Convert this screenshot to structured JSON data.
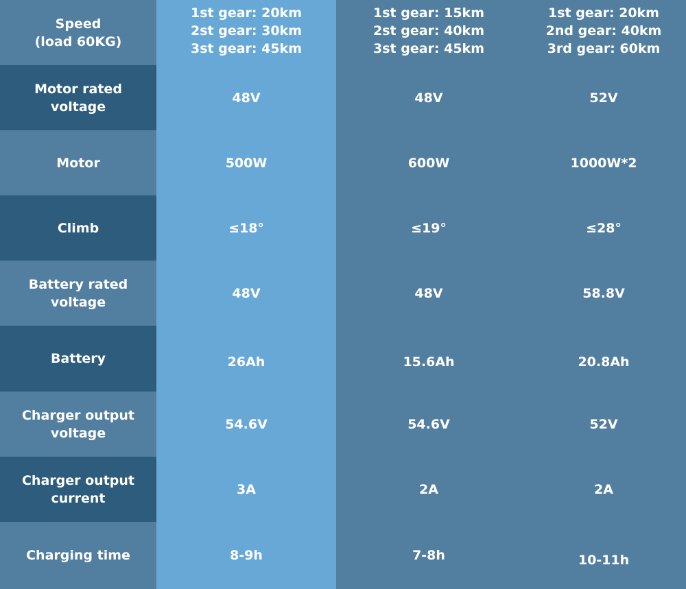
{
  "rows": [
    {
      "label": "Speed\n(load 60KG)",
      "values": [
        "1st gear: 20km\n2st gear: 30km\n3st gear: 45km",
        "1st gear: 15km\n2st gear: 40km\n3st gear: 45km",
        "1st gear: 20km\n2nd gear: 40km\n3rd gear: 60km"
      ]
    },
    {
      "label": "Motor rated\nvoltage",
      "values": [
        "48V",
        "48V",
        "52V"
      ]
    },
    {
      "label": "Motor",
      "values": [
        "500W",
        "600W",
        "1000W*2"
      ]
    },
    {
      "label": "Climb",
      "values": [
        "≤18°",
        "≤19°",
        "≤28°"
      ]
    },
    {
      "label": "Battery rated\nvoltage",
      "values": [
        "48V",
        "48V",
        "58.8V"
      ]
    },
    {
      "label": "Battery",
      "values": [
        "26Ah",
        "15.6Ah",
        "20.8Ah"
      ]
    },
    {
      "label": "Charger output\nvoltage",
      "values": [
        "54.6V",
        "54.6V",
        "52V"
      ]
    },
    {
      "label": "Charger output\ncurrent",
      "values": [
        "3A",
        "2A",
        "2A"
      ]
    },
    {
      "label": "Charging time",
      "values": [
        "8-9h",
        "7-8h",
        "10-11h"
      ]
    }
  ],
  "colors": {
    "label_light": "#527ea0",
    "label_dark": "#2e5c7c",
    "column_highlight": "#68a8d7",
    "column_default": "#527ea0",
    "text": "#ffffff"
  }
}
